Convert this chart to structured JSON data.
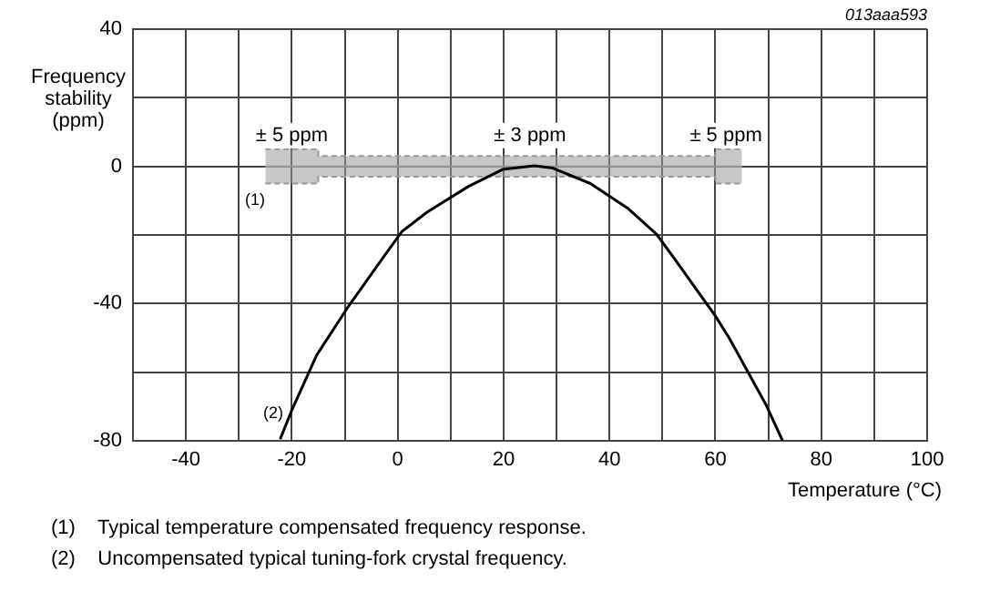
{
  "chart_data": {
    "type": "line",
    "xlabel": "Temperature (°C)",
    "ylabel": "Frequency stability (ppm)",
    "xlim": [
      -50,
      100
    ],
    "ylim": [
      -80,
      40
    ],
    "xticks": [
      {
        "value": -50,
        "label": null
      },
      -40,
      {
        "value": -30,
        "label": null
      },
      -20,
      {
        "value": -10,
        "label": null
      },
      0,
      {
        "value": 10,
        "label": null
      },
      20,
      {
        "value": 30,
        "label": null
      },
      40,
      {
        "value": 50,
        "label": null
      },
      60,
      {
        "value": 70,
        "label": null
      },
      80,
      {
        "value": 90,
        "label": null
      },
      100
    ],
    "yticks": [
      -80,
      {
        "value": -60,
        "label": null
      },
      -40,
      {
        "value": -20,
        "label": null
      },
      0,
      {
        "value": 20,
        "label": null
      },
      40
    ],
    "grid": true,
    "legend": false,
    "marker": "none",
    "line_style": "solid",
    "series": [
      {
        "type": "line",
        "color": "#999999",
        "x": [
          -25,
          -15,
          -15,
          60,
          60,
          65
        ],
        "values": [
          0,
          0,
          0,
          0,
          0,
          0
        ],
        "upper": [
          5,
          5,
          3,
          3,
          5,
          5
        ],
        "lower": [
          -5,
          -5,
          -3,
          -3,
          -5,
          -5
        ]
      },
      {
        "color": "#000000",
        "x": [
          -22.2,
          -20,
          -15.3,
          -9.6,
          -2.8,
          0.8,
          5.6,
          13.3,
          19.8,
          25.8,
          29.3,
          36.4,
          43.6,
          48.9,
          52.5,
          60,
          62.6,
          69.5,
          72.7
        ],
        "values": [
          -79.5,
          -71.1,
          -55,
          -41.5,
          -26.7,
          -19,
          -13.3,
          -5.9,
          -0.9,
          0.2,
          -0.5,
          -5,
          -12.4,
          -19.8,
          -27.4,
          -43.6,
          -50,
          -69.3,
          -80
        ]
      }
    ],
    "annotations": [
      {
        "text": "± 5 ppm",
        "x": -20,
        "y": 9
      },
      {
        "text": "± 3 ppm",
        "x": 25,
        "y": 9
      },
      {
        "text": "± 5 ppm",
        "x": 62,
        "y": 9
      },
      "013aaa593",
      "(1)",
      "(2)",
      "(1)    Typical temperature compensated frequency response.",
      "(2)    Uncompensated typical tuning-fork crystal frequency."
    ]
  }
}
